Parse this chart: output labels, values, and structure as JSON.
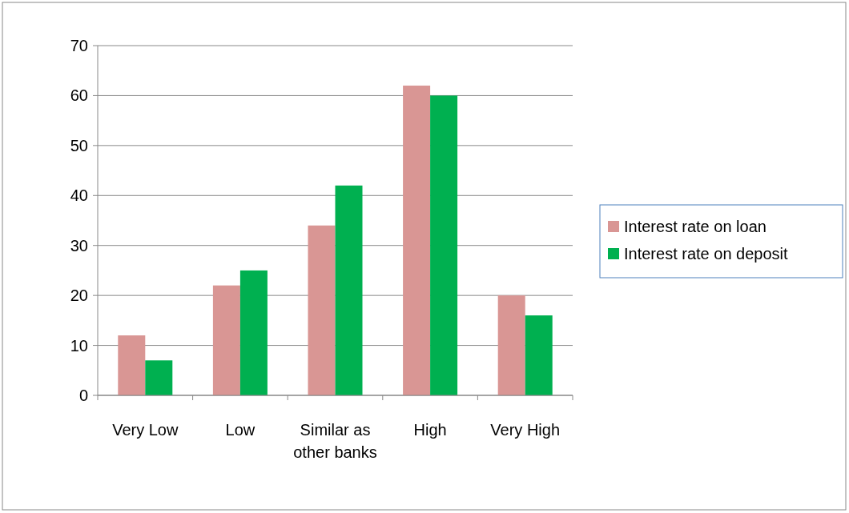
{
  "chart_data": {
    "type": "bar",
    "categories": [
      "Very Low",
      "Low",
      "Similar as other banks",
      "High",
      "Very High"
    ],
    "series": [
      {
        "name": "Interest rate on loan",
        "color": "#d99694",
        "values": [
          12,
          22,
          34,
          62,
          20
        ]
      },
      {
        "name": "Interest rate on deposit",
        "color": "#00b050",
        "values": [
          7,
          25,
          42,
          60,
          16
        ]
      }
    ],
    "ylim": [
      0,
      70
    ],
    "yticks": [
      0,
      10,
      20,
      30,
      40,
      50,
      60,
      70
    ],
    "grid": "y",
    "legend": "right"
  }
}
